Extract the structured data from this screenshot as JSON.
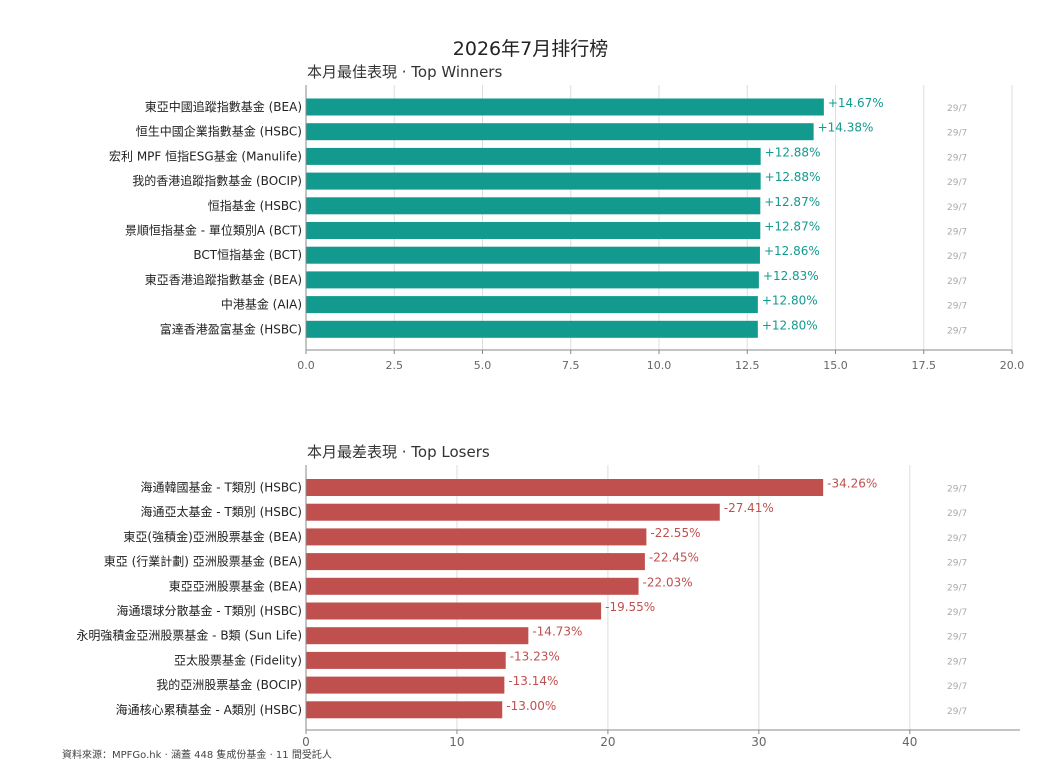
{
  "title": "2026年7月排行榜",
  "source": "資料來源：MPFGo.hk · 涵蓋 448 隻成份基金 · 11 間受託人",
  "colors": {
    "winners_bar": "#129a8f",
    "winners_label": "#129a8f",
    "losers_bar": "#c0504d",
    "losers_label": "#c0504d",
    "date_label": "#aaaaaa",
    "grid": "#dddddd",
    "axis": "#888888",
    "category_text": "#222222",
    "tick_text": "#666666"
  },
  "chart_data": [
    {
      "type": "bar",
      "orientation": "horizontal",
      "subtitle": "本月最佳表現 · Top Winners",
      "categories": [
        "東亞中國追蹤指數基金 (BEA)",
        "恒生中國企業指數基金 (HSBC)",
        "宏利 MPF 恒指ESG基金 (Manulife)",
        "我的香港追蹤指數基金 (BOCIP)",
        "恒指基金 (HSBC)",
        "景順恒指基金 - 單位類別A (BCT)",
        "BCT恒指基金 (BCT)",
        "東亞香港追蹤指數基金 (BEA)",
        "中港基金 (AIA)",
        "富達香港盈富基金 (HSBC)"
      ],
      "values": [
        14.67,
        14.38,
        12.88,
        12.88,
        12.87,
        12.87,
        12.86,
        12.83,
        12.8,
        12.8
      ],
      "value_labels": [
        "+14.67%",
        "+14.38%",
        "+12.88%",
        "+12.88%",
        "+12.87%",
        "+12.87%",
        "+12.86%",
        "+12.83%",
        "+12.80%",
        "+12.80%"
      ],
      "dates": [
        "29/7",
        "29/7",
        "29/7",
        "29/7",
        "29/7",
        "29/7",
        "29/7",
        "29/7",
        "29/7",
        "29/7"
      ],
      "xlim": [
        0,
        20
      ],
      "xticks": [
        0,
        2.5,
        5,
        7.5,
        10,
        12.5,
        15,
        17.5,
        20
      ],
      "xtick_labels": [
        "0.0",
        "2.5",
        "5.0",
        "7.5",
        "10.0",
        "12.5",
        "15.0",
        "17.5",
        "20.0"
      ],
      "grid": "vertical"
    },
    {
      "type": "bar",
      "orientation": "horizontal",
      "subtitle": "本月最差表現 · Top Losers",
      "categories": [
        "海通韓國基金 - T類別 (HSBC)",
        "海通亞太基金 - T類別 (HSBC)",
        "東亞(強積金)亞洲股票基金 (BEA)",
        "東亞 (行業計劃) 亞洲股票基金 (BEA)",
        "東亞亞洲股票基金 (BEA)",
        "海通環球分散基金 - T類別 (HSBC)",
        "永明強積金亞洲股票基金 - B類 (Sun Life)",
        "亞太股票基金 (Fidelity)",
        "我的亞洲股票基金 (BOCIP)",
        "海通核心累積基金 - A類別 (HSBC)"
      ],
      "values": [
        34.26,
        27.41,
        22.55,
        22.45,
        22.03,
        19.55,
        14.73,
        13.23,
        13.14,
        13.0
      ],
      "value_labels": [
        "-34.26%",
        "-27.41%",
        "-22.55%",
        "-22.45%",
        "-22.03%",
        "-19.55%",
        "-14.73%",
        "-13.23%",
        "-13.14%",
        "-13.00%"
      ],
      "dates": [
        "29/7",
        "29/7",
        "29/7",
        "29/7",
        "29/7",
        "29/7",
        "29/7",
        "29/7",
        "29/7",
        "29/7"
      ],
      "xlim": [
        0,
        47.3
      ],
      "xticks": [
        0,
        10,
        20,
        30,
        40
      ],
      "xtick_labels": [
        "0",
        "10",
        "20",
        "30",
        "40"
      ],
      "grid": "vertical"
    }
  ]
}
